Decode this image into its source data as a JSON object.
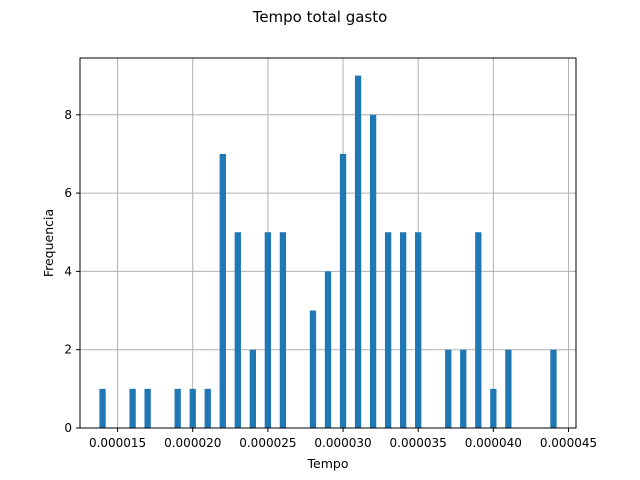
{
  "chart_data": {
    "type": "bar",
    "title": "Tempo total gasto",
    "xlabel": "Tempo",
    "ylabel": "Frequencia",
    "xlim": [
      1.25e-05,
      4.55e-05
    ],
    "ylim": [
      0,
      9.45
    ],
    "grid": true,
    "bar_color": "#1f77b4",
    "bin_width": 4.2e-07,
    "x_ticks": [
      {
        "value": 1.5e-05,
        "label": "0.000015"
      },
      {
        "value": 2e-05,
        "label": "0.000020"
      },
      {
        "value": 2.5e-05,
        "label": "0.000025"
      },
      {
        "value": 3e-05,
        "label": "0.000030"
      },
      {
        "value": 3.5e-05,
        "label": "0.000035"
      },
      {
        "value": 4e-05,
        "label": "0.000040"
      },
      {
        "value": 4.5e-05,
        "label": "0.000045"
      }
    ],
    "y_ticks": [
      {
        "value": 0,
        "label": "0"
      },
      {
        "value": 2,
        "label": "2"
      },
      {
        "value": 4,
        "label": "4"
      },
      {
        "value": 6,
        "label": "6"
      },
      {
        "value": 8,
        "label": "8"
      }
    ],
    "bins": [
      {
        "x": 1.4e-05,
        "count": 1
      },
      {
        "x": 1.6e-05,
        "count": 1
      },
      {
        "x": 1.7e-05,
        "count": 1
      },
      {
        "x": 1.9e-05,
        "count": 1
      },
      {
        "x": 2e-05,
        "count": 1
      },
      {
        "x": 2.1e-05,
        "count": 1
      },
      {
        "x": 2.2e-05,
        "count": 7
      },
      {
        "x": 2.3e-05,
        "count": 5
      },
      {
        "x": 2.4e-05,
        "count": 2
      },
      {
        "x": 2.5e-05,
        "count": 5
      },
      {
        "x": 2.6e-05,
        "count": 5
      },
      {
        "x": 2.8e-05,
        "count": 3
      },
      {
        "x": 2.9e-05,
        "count": 4
      },
      {
        "x": 3e-05,
        "count": 7
      },
      {
        "x": 3.1e-05,
        "count": 9
      },
      {
        "x": 3.2e-05,
        "count": 8
      },
      {
        "x": 3.3e-05,
        "count": 5
      },
      {
        "x": 3.4e-05,
        "count": 5
      },
      {
        "x": 3.5e-05,
        "count": 5
      },
      {
        "x": 3.7e-05,
        "count": 2
      },
      {
        "x": 3.8e-05,
        "count": 2
      },
      {
        "x": 3.9e-05,
        "count": 5
      },
      {
        "x": 4e-05,
        "count": 1
      },
      {
        "x": 4.1e-05,
        "count": 2
      },
      {
        "x": 4.4e-05,
        "count": 2
      }
    ]
  }
}
